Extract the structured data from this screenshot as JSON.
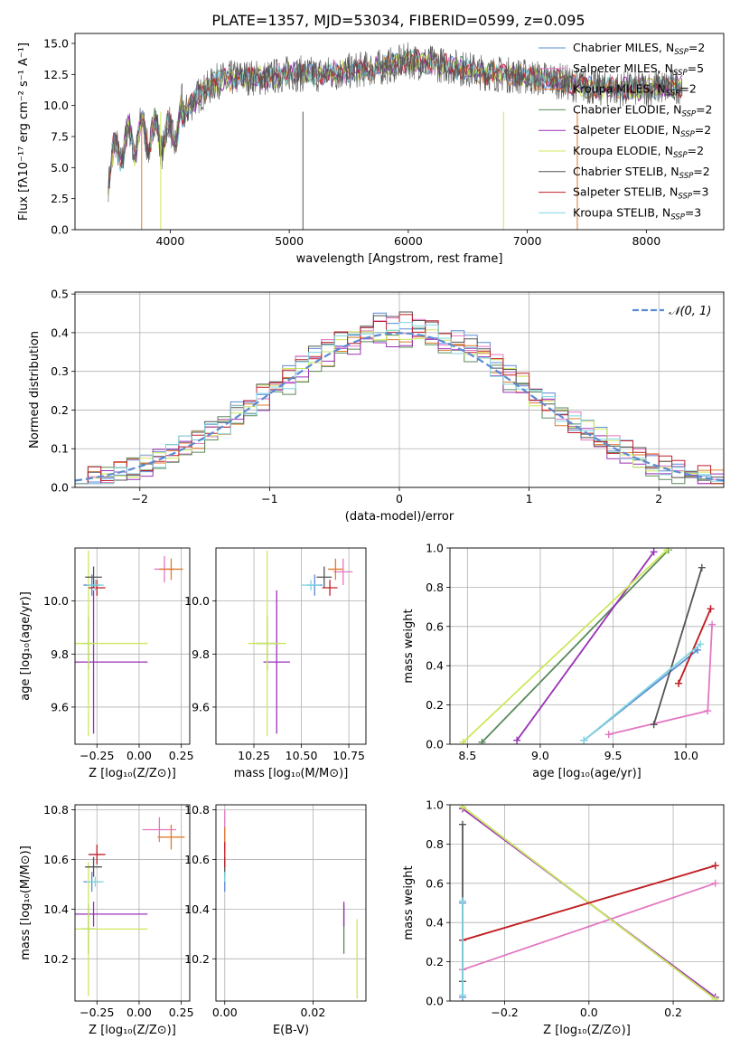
{
  "title": "PLATE=1357, MJD=53034, FIBERID=0599, z=0.095",
  "series": [
    {
      "key": "chab_miles",
      "name": "Chabrier MILES, N",
      "sub": "SSP",
      "suf": "=2",
      "color": "#5b8bd3"
    },
    {
      "key": "salp_miles",
      "name": "Salpeter MILES, N",
      "sub": "SSP",
      "suf": "=5",
      "color": "#e377c2"
    },
    {
      "key": "krou_miles",
      "name": "Kroupa MILES, N",
      "sub": "SSP",
      "suf": "=2",
      "color": "#e07b2e"
    },
    {
      "key": "chab_elodie",
      "name": "Chabrier ELODIE, N",
      "sub": "SSP",
      "suf": "=2",
      "color": "#5a8a5a"
    },
    {
      "key": "salp_elodie",
      "name": "Salpeter ELODIE, N",
      "sub": "SSP",
      "suf": "=2",
      "color": "#9b30b8"
    },
    {
      "key": "krou_elodie",
      "name": "Kroupa ELODIE, N",
      "sub": "SSP",
      "suf": "=2",
      "color": "#cce85c"
    },
    {
      "key": "chab_stelib",
      "name": "Chabrier STELIB, N",
      "sub": "SSP",
      "suf": "=2",
      "color": "#555555"
    },
    {
      "key": "salp_stelib",
      "name": "Salpeter STELIB, N",
      "sub": "SSP",
      "suf": "=3",
      "color": "#c01f2a"
    },
    {
      "key": "krou_stelib",
      "name": "Kroupa STELIB, N",
      "sub": "SSP",
      "suf": "=3",
      "color": "#7fd6e0"
    }
  ],
  "chart_data": [
    {
      "id": "spectrum",
      "type": "line",
      "xlabel": "wavelength [Angstrom, rest frame]",
      "ylabel": "Flux [fλ10⁻¹⁷ erg cm⁻² s⁻¹ A⁻¹]",
      "xlim": [
        3200,
        8650
      ],
      "ylim": [
        0,
        15.8
      ],
      "xticks": [
        4000,
        5000,
        6000,
        7000,
        8000
      ],
      "yticks": [
        0.0,
        2.5,
        5.0,
        7.5,
        10.0,
        12.5,
        15.0
      ],
      "grid": false,
      "continuum": {
        "x": [
          3480,
          3600,
          3800,
          4000,
          4200,
          4400,
          4600,
          4800,
          5000,
          5200,
          5400,
          5600,
          5800,
          6000,
          6200,
          6400,
          6600,
          6800,
          7000,
          7200,
          7400,
          7600,
          7800,
          8000,
          8200,
          8300
        ],
        "y": [
          5.0,
          6.8,
          7.8,
          7.5,
          10.5,
          12.0,
          12.3,
          12.2,
          12.6,
          12.5,
          12.6,
          12.9,
          13.1,
          13.6,
          13.4,
          13.1,
          12.7,
          12.5,
          12.3,
          12.1,
          11.7,
          11.4,
          11.3,
          11.4,
          11.5,
          11.6
        ]
      }
    },
    {
      "id": "residuals",
      "type": "histogram",
      "xlabel": "(data-model)/error",
      "ylabel": "Normed distribution",
      "xlim": [
        -2.5,
        2.5
      ],
      "ylim": [
        0,
        0.505
      ],
      "xticks": [
        -2,
        -1,
        0,
        1,
        2
      ],
      "yticks": [
        0.0,
        0.1,
        0.2,
        0.3,
        0.4,
        0.5
      ],
      "grid": true,
      "legend": "𝒩(0, 1)",
      "legend_position": "top-right",
      "reference": "normal(0,1)"
    },
    {
      "id": "age_vs_Z",
      "type": "scatter",
      "xlabel": "Z [log₁₀(Z/Z⊙)]",
      "ylabel": "age  [log₁₀(age/yr)]",
      "xlim": [
        -0.38,
        0.3
      ],
      "ylim": [
        9.46,
        10.2
      ],
      "xticks": [
        -0.25,
        0.0,
        0.25
      ],
      "yticks": [
        9.6,
        9.8,
        10.0
      ],
      "grid": true,
      "points": [
        {
          "s": "chab_miles",
          "x": -0.28,
          "y": 10.06,
          "xe": 0.05,
          "ye": 0.04
        },
        {
          "s": "salp_miles",
          "x": 0.15,
          "y": 10.12,
          "xe": 0.06,
          "ye": 0.05
        },
        {
          "s": "krou_miles",
          "x": 0.19,
          "y": 10.12,
          "xe": 0.07,
          "ye": 0.04
        },
        {
          "s": "chab_elodie",
          "x": -0.3,
          "y": 9.84,
          "xe": 0.04,
          "ye": 0.1
        },
        {
          "s": "salp_elodie",
          "x": -0.27,
          "y": 9.77,
          "xe": 0.32,
          "ye": 0.27
        },
        {
          "s": "krou_elodie",
          "x": -0.3,
          "y": 9.84,
          "xe": 0.35,
          "ye": 0.35
        },
        {
          "s": "chab_stelib",
          "x": -0.27,
          "y": 10.09,
          "xe": 0.05,
          "ye": 0.04
        },
        {
          "s": "salp_stelib",
          "x": -0.25,
          "y": 10.05,
          "xe": 0.05,
          "ye": 0.03
        },
        {
          "s": "krou_stelib",
          "x": -0.26,
          "y": 10.06,
          "xe": 0.05,
          "ye": 0.02
        }
      ]
    },
    {
      "id": "age_vs_mass",
      "type": "scatter",
      "xlabel": "mass [log₁₀(M/M⊙)]",
      "ylabel": "",
      "xlim": [
        10.05,
        10.84
      ],
      "ylim": [
        9.46,
        10.2
      ],
      "xticks": [
        10.25,
        10.5,
        10.75
      ],
      "yticks": [
        9.6,
        9.8,
        10.0
      ],
      "grid": true,
      "points": [
        {
          "s": "chab_miles",
          "x": 10.57,
          "y": 10.06,
          "xe": 0.04,
          "ye": 0.04
        },
        {
          "s": "salp_miles",
          "x": 10.72,
          "y": 10.11,
          "xe": 0.05,
          "ye": 0.05
        },
        {
          "s": "krou_miles",
          "x": 10.68,
          "y": 10.12,
          "xe": 0.04,
          "ye": 0.04
        },
        {
          "s": "chab_elodie",
          "x": 10.32,
          "y": 9.84,
          "xe": 0.06,
          "ye": 0.1
        },
        {
          "s": "salp_elodie",
          "x": 10.37,
          "y": 9.77,
          "xe": 0.07,
          "ye": 0.27
        },
        {
          "s": "krou_elodie",
          "x": 10.32,
          "y": 9.84,
          "xe": 0.1,
          "ye": 0.35
        },
        {
          "s": "chab_stelib",
          "x": 10.62,
          "y": 10.09,
          "xe": 0.04,
          "ye": 0.04
        },
        {
          "s": "salp_stelib",
          "x": 10.65,
          "y": 10.05,
          "xe": 0.04,
          "ye": 0.03
        },
        {
          "s": "krou_stelib",
          "x": 10.55,
          "y": 10.06,
          "xe": 0.05,
          "ye": 0.02
        }
      ]
    },
    {
      "id": "weight_vs_age",
      "type": "line",
      "xlabel": "age  [log₁₀(age/yr)]",
      "ylabel": "mass weight",
      "xlim": [
        8.38,
        10.26
      ],
      "ylim": [
        0,
        1
      ],
      "xticks": [
        8.5,
        9.0,
        9.5,
        10.0
      ],
      "yticks": [
        0.0,
        0.2,
        0.4,
        0.6,
        0.8,
        1.0
      ],
      "grid": true,
      "lines": [
        {
          "s": "chab_miles",
          "x": [
            9.3,
            10.08
          ],
          "y": [
            0.02,
            0.48
          ]
        },
        {
          "s": "salp_miles",
          "x": [
            9.47,
            10.15,
            10.18
          ],
          "y": [
            0.05,
            0.17,
            0.61
          ]
        },
        {
          "s": "krou_miles",
          "x": [
            9.95,
            10.17
          ],
          "y": [
            0.31,
            0.69
          ]
        },
        {
          "s": "chab_elodie",
          "x": [
            8.6,
            9.88
          ],
          "y": [
            0.01,
            0.99
          ]
        },
        {
          "s": "salp_elodie",
          "x": [
            8.84,
            9.78
          ],
          "y": [
            0.02,
            0.98
          ]
        },
        {
          "s": "krou_elodie",
          "x": [
            8.47,
            9.87
          ],
          "y": [
            0.01,
            0.99
          ]
        },
        {
          "s": "chab_stelib",
          "x": [
            9.78,
            10.11
          ],
          "y": [
            0.1,
            0.9
          ]
        },
        {
          "s": "salp_stelib",
          "x": [
            9.95,
            10.17
          ],
          "y": [
            0.31,
            0.69
          ]
        },
        {
          "s": "krou_stelib",
          "x": [
            9.3,
            10.1
          ],
          "y": [
            0.02,
            0.51
          ]
        }
      ]
    },
    {
      "id": "mass_vs_Z",
      "type": "scatter",
      "xlabel": "Z [log₁₀(Z/Z⊙)]",
      "ylabel": "mass [log₁₀(M/M⊙)]",
      "xlim": [
        -0.38,
        0.3
      ],
      "ylim": [
        10.03,
        10.82
      ],
      "xticks": [
        -0.25,
        0.0,
        0.25
      ],
      "yticks": [
        10.2,
        10.4,
        10.6,
        10.8
      ],
      "grid": true,
      "points": [
        {
          "s": "chab_miles",
          "x": -0.28,
          "y": 10.51,
          "xe": 0.05,
          "ye": 0.04
        },
        {
          "s": "salp_miles",
          "x": 0.12,
          "y": 10.72,
          "xe": 0.1,
          "ye": 0.05
        },
        {
          "s": "krou_miles",
          "x": 0.19,
          "y": 10.69,
          "xe": 0.08,
          "ye": 0.05
        },
        {
          "s": "chab_elodie",
          "x": -0.3,
          "y": 10.32,
          "xe": 0.04,
          "ye": 0.1
        },
        {
          "s": "salp_elodie",
          "x": -0.27,
          "y": 10.38,
          "xe": 0.32,
          "ye": 0.05
        },
        {
          "s": "krou_elodie",
          "x": -0.3,
          "y": 10.32,
          "xe": 0.35,
          "ye": 0.27
        },
        {
          "s": "chab_stelib",
          "x": -0.27,
          "y": 10.57,
          "xe": 0.05,
          "ye": 0.04
        },
        {
          "s": "salp_stelib",
          "x": -0.25,
          "y": 10.62,
          "xe": 0.05,
          "ye": 0.04
        },
        {
          "s": "krou_stelib",
          "x": -0.26,
          "y": 10.51,
          "xe": 0.05,
          "ye": 0.02
        }
      ]
    },
    {
      "id": "mass_vs_ebv",
      "type": "scatter",
      "xlabel": "E(B-V)",
      "ylabel": "",
      "xlim": [
        -0.002,
        0.032
      ],
      "ylim": [
        10.03,
        10.82
      ],
      "xticks": [
        0.0,
        0.02
      ],
      "yticks": [
        10.2,
        10.4,
        10.6,
        10.8
      ],
      "grid": true,
      "points": [
        {
          "s": "chab_miles",
          "x": 0.0,
          "y": 10.51,
          "xe": 0,
          "ye": 0.04
        },
        {
          "s": "salp_miles",
          "x": 0.0,
          "y": 10.72,
          "xe": 0,
          "ye": 0.08
        },
        {
          "s": "krou_miles",
          "x": 0.0,
          "y": 10.68,
          "xe": 0,
          "ye": 0.05
        },
        {
          "s": "chab_elodie",
          "x": 0.027,
          "y": 10.32,
          "xe": 0,
          "ye": 0.1
        },
        {
          "s": "salp_elodie",
          "x": 0.027,
          "y": 10.38,
          "xe": 0,
          "ye": 0.05
        },
        {
          "s": "krou_elodie",
          "x": 0.03,
          "y": 10.2,
          "xe": 0,
          "ye": 0.16
        },
        {
          "s": "chab_stelib",
          "x": 0.0,
          "y": 10.57,
          "xe": 0,
          "ye": 0.04
        },
        {
          "s": "salp_stelib",
          "x": 0.0,
          "y": 10.62,
          "xe": 0,
          "ye": 0.05
        },
        {
          "s": "krou_stelib",
          "x": 0.0,
          "y": 10.53,
          "xe": 0,
          "ye": 0.02
        }
      ]
    },
    {
      "id": "weight_vs_Z",
      "type": "line",
      "xlabel": "Z [log₁₀(Z/Z⊙)]",
      "ylabel": "mass weight",
      "xlim": [
        -0.33,
        0.32
      ],
      "ylim": [
        0,
        1
      ],
      "xticks": [
        -0.2,
        0.0,
        0.2
      ],
      "yticks": [
        0.0,
        0.2,
        0.4,
        0.6,
        0.8,
        1.0
      ],
      "grid": true,
      "lines": [
        {
          "s": "chab_miles",
          "x": [
            -0.3,
            -0.3
          ],
          "y": [
            0.02,
            0.5
          ]
        },
        {
          "s": "salp_miles",
          "x": [
            -0.3,
            0.3
          ],
          "y": [
            0.16,
            0.6
          ]
        },
        {
          "s": "krou_miles",
          "x": [
            -0.3,
            0.3
          ],
          "y": [
            0.31,
            0.69
          ]
        },
        {
          "s": "chab_elodie",
          "x": [
            -0.3,
            0.3
          ],
          "y": [
            0.99,
            0.01
          ]
        },
        {
          "s": "salp_elodie",
          "x": [
            -0.3,
            0.3
          ],
          "y": [
            0.98,
            0.02
          ]
        },
        {
          "s": "krou_elodie",
          "x": [
            -0.3,
            0.3
          ],
          "y": [
            0.99,
            0.01
          ]
        },
        {
          "s": "chab_stelib",
          "x": [
            -0.3,
            -0.3
          ],
          "y": [
            0.1,
            0.9
          ]
        },
        {
          "s": "salp_stelib",
          "x": [
            -0.3,
            0.3
          ],
          "y": [
            0.31,
            0.69
          ]
        },
        {
          "s": "krou_stelib",
          "x": [
            -0.3,
            -0.3
          ],
          "y": [
            0.03,
            0.51
          ]
        }
      ]
    }
  ]
}
